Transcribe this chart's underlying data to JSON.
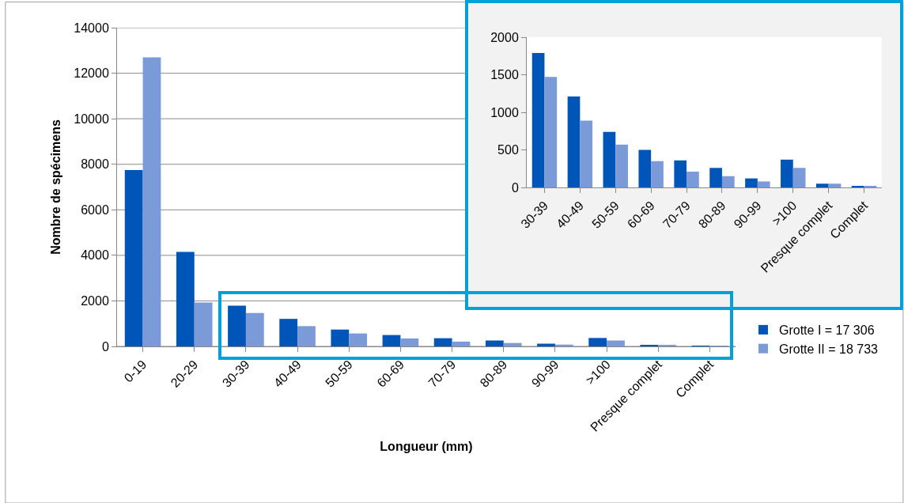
{
  "chart_data": [
    {
      "type": "bar",
      "xlabel": "Longueur (mm)",
      "ylabel": "Nombre de spécimens",
      "categories": [
        "0-19",
        "20-29",
        "30-39",
        "40-49",
        "50-59",
        "60-69",
        "70-79",
        "80-89",
        "90-99",
        ">100",
        "Presque complet",
        "Complet"
      ],
      "series": [
        {
          "name": "Grotte I = 17 306",
          "color": "#0055b8",
          "values": [
            7750,
            4150,
            1790,
            1210,
            740,
            500,
            360,
            260,
            120,
            370,
            50,
            20
          ]
        },
        {
          "name": "Grotte II = 18 733",
          "color": "#7a9ad8",
          "values": [
            12700,
            1930,
            1470,
            890,
            570,
            350,
            210,
            150,
            80,
            260,
            50,
            20
          ]
        }
      ],
      "ylim": [
        0,
        14000
      ],
      "yticks": [
        0,
        2000,
        4000,
        6000,
        8000,
        10000,
        12000,
        14000
      ],
      "grid": "y",
      "legend": "right"
    },
    {
      "type": "bar",
      "categories": [
        "30-39",
        "40-49",
        "50-59",
        "60-69",
        "70-79",
        "80-89",
        "90-99",
        ">100",
        "Presque complet",
        "Complet"
      ],
      "series": [
        {
          "color": "#0055b8",
          "values": [
            1790,
            1210,
            740,
            500,
            360,
            260,
            120,
            370,
            50,
            20
          ]
        },
        {
          "color": "#7a9ad8",
          "values": [
            1470,
            890,
            570,
            350,
            210,
            150,
            80,
            260,
            50,
            20
          ]
        }
      ],
      "ylim": [
        0,
        2000
      ],
      "yticks": [
        0,
        500,
        1000,
        1500,
        2000
      ],
      "grid": "y",
      "legend": false
    }
  ]
}
